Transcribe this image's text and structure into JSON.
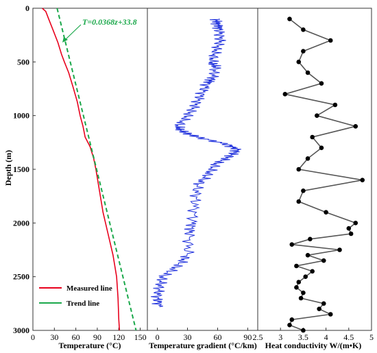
{
  "chart_data": [
    {
      "type": "line",
      "xlabel": "Temperature (°C)",
      "ylabel": "Depth (m)",
      "xlim": [
        0,
        160
      ],
      "ylim": [
        3000,
        0
      ],
      "x_ticks": [
        "0",
        "30",
        "60",
        "90",
        "120",
        "150"
      ],
      "y_ticks": [
        "0",
        "500",
        "1000",
        "1500",
        "2000",
        "2500",
        "3000"
      ],
      "equation": "T=0.0368z+33.8",
      "legend_position": "bottom-left",
      "series": [
        {
          "name": "Measured line",
          "color": "#e8001c",
          "style": "solid",
          "points": [
            [
              13,
              0
            ],
            [
              18,
              30
            ],
            [
              22,
              100
            ],
            [
              28,
              200
            ],
            [
              35,
              320
            ],
            [
              40,
              430
            ],
            [
              44,
              500
            ],
            [
              50,
              600
            ],
            [
              56,
              730
            ],
            [
              62,
              870
            ],
            [
              66,
              1000
            ],
            [
              70,
              1100
            ],
            [
              73,
              1200
            ],
            [
              80,
              1290
            ],
            [
              85,
              1400
            ],
            [
              88,
              1500
            ],
            [
              93,
              1700
            ],
            [
              98,
              1900
            ],
            [
              105,
              2100
            ],
            [
              112,
              2300
            ],
            [
              117,
              2500
            ],
            [
              119,
              2700
            ],
            [
              120,
              2900
            ],
            [
              121,
              3000
            ]
          ]
        },
        {
          "name": "Trend line",
          "color": "#1aa84a",
          "style": "dashed",
          "points": [
            [
              33.8,
              0
            ],
            [
              144.2,
              3000
            ]
          ]
        }
      ]
    },
    {
      "type": "line",
      "xlabel": "Temperature gradient (°C/km)",
      "xlim": [
        -10,
        100
      ],
      "ylim": [
        3000,
        0
      ],
      "x_ticks": [
        "0",
        "30",
        "60",
        "90"
      ],
      "series": [
        {
          "color": "#2233dd",
          "points": [
            [
              58,
              100
            ],
            [
              60,
              150
            ],
            [
              62,
              200
            ],
            [
              63,
              300
            ],
            [
              58,
              400
            ],
            [
              54,
              500
            ],
            [
              58,
              550
            ],
            [
              55,
              650
            ],
            [
              50,
              700
            ],
            [
              44,
              800
            ],
            [
              38,
              900
            ],
            [
              30,
              1000
            ],
            [
              20,
              1100
            ],
            [
              25,
              1150
            ],
            [
              40,
              1200
            ],
            [
              70,
              1270
            ],
            [
              80,
              1320
            ],
            [
              72,
              1380
            ],
            [
              58,
              1450
            ],
            [
              50,
              1550
            ],
            [
              40,
              1650
            ],
            [
              38,
              1800
            ],
            [
              35,
              2000
            ],
            [
              32,
              2100
            ],
            [
              30,
              2300
            ],
            [
              20,
              2400
            ],
            [
              5,
              2500
            ],
            [
              2,
              2600
            ],
            [
              0,
              2700
            ],
            [
              2,
              2780
            ]
          ]
        }
      ]
    },
    {
      "type": "line",
      "xlabel": "Heat conductivity W/(m•K)",
      "xlim": [
        2.5,
        5
      ],
      "ylim": [
        3000,
        0
      ],
      "x_ticks": [
        "2.5",
        "3",
        "3.5",
        "4",
        "4.5",
        "5"
      ],
      "series": [
        {
          "color": "#555555",
          "marker": "circle",
          "points": [
            [
              3.2,
              100
            ],
            [
              3.5,
              200
            ],
            [
              4.1,
              300
            ],
            [
              3.5,
              400
            ],
            [
              3.4,
              500
            ],
            [
              3.6,
              600
            ],
            [
              3.9,
              700
            ],
            [
              3.1,
              800
            ],
            [
              4.2,
              900
            ],
            [
              3.8,
              1000
            ],
            [
              4.65,
              1100
            ],
            [
              3.7,
              1200
            ],
            [
              3.9,
              1300
            ],
            [
              3.6,
              1400
            ],
            [
              3.4,
              1500
            ],
            [
              4.8,
              1600
            ],
            [
              3.5,
              1700
            ],
            [
              3.4,
              1800
            ],
            [
              4.0,
              1900
            ],
            [
              4.65,
              2000
            ],
            [
              4.5,
              2050
            ],
            [
              4.55,
              2100
            ],
            [
              3.65,
              2150
            ],
            [
              3.25,
              2200
            ],
            [
              4.3,
              2250
            ],
            [
              3.6,
              2300
            ],
            [
              3.95,
              2350
            ],
            [
              3.35,
              2400
            ],
            [
              3.7,
              2450
            ],
            [
              3.55,
              2500
            ],
            [
              3.4,
              2550
            ],
            [
              3.35,
              2600
            ],
            [
              3.5,
              2650
            ],
            [
              3.45,
              2700
            ],
            [
              3.95,
              2750
            ],
            [
              3.85,
              2800
            ],
            [
              4.1,
              2850
            ],
            [
              3.25,
              2900
            ],
            [
              3.2,
              2950
            ],
            [
              3.5,
              3000
            ]
          ]
        }
      ]
    }
  ]
}
